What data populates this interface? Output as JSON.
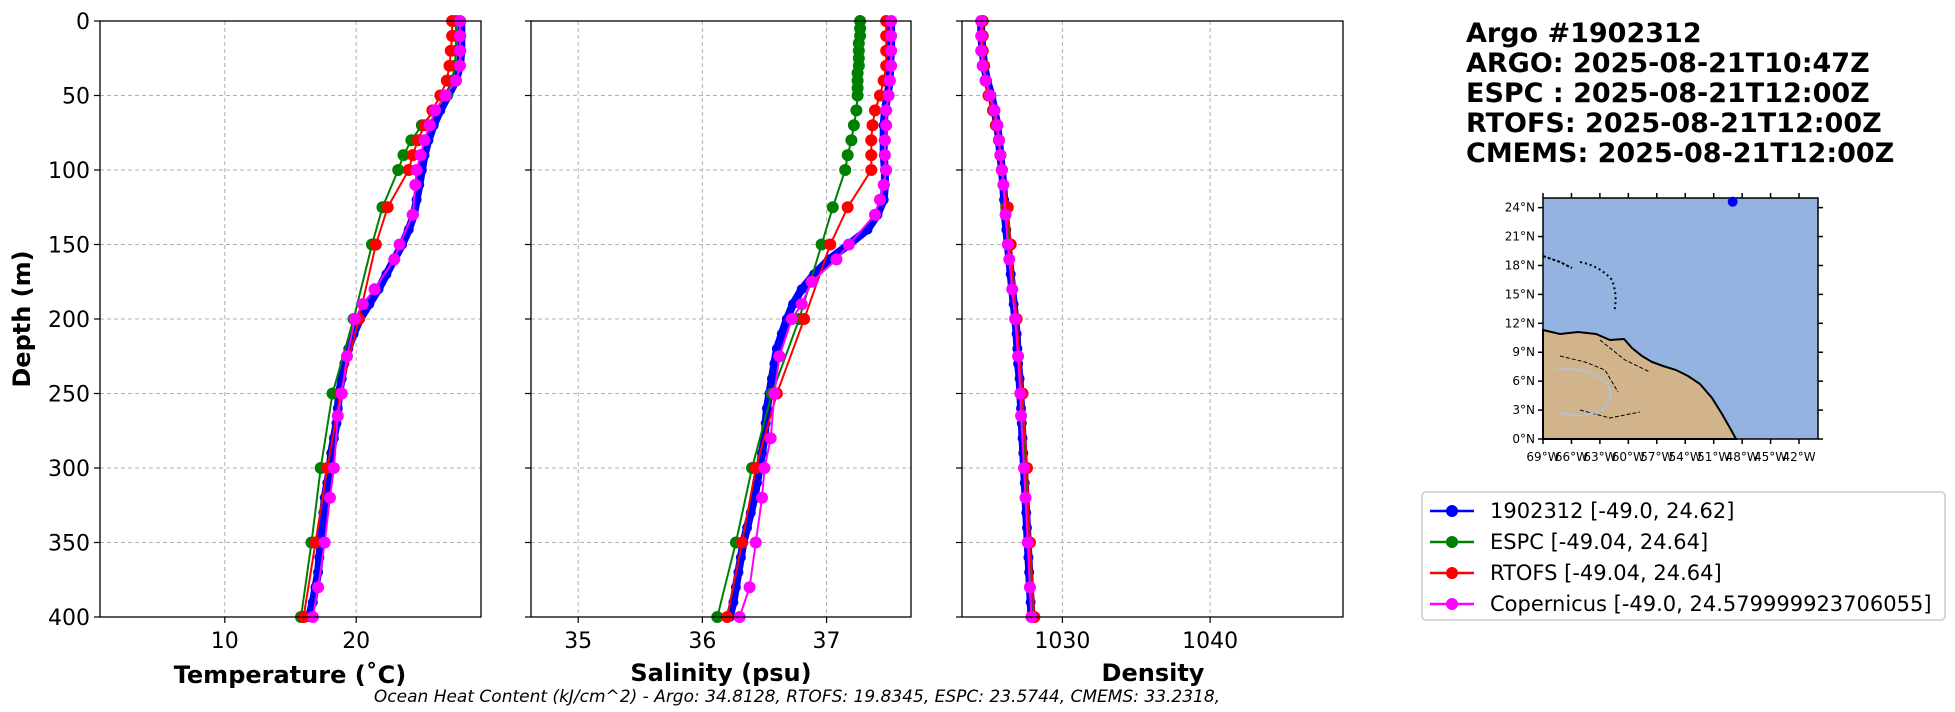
{
  "title_lines": [
    "Argo #1902312",
    "ARGO: 2025-08-21T10:47Z",
    "ESPC : 2025-08-21T12:00Z",
    "RTOFS: 2025-08-21T12:00Z",
    "CMEMS: 2025-08-21T12:00Z"
  ],
  "footer": "Ocean Heat Content (kJ/cm^2) - Argo: 34.8128,  RTOFS: 19.8345,  ESPC: 23.5744,  CMEMS: 33.2318,",
  "colors": {
    "argo": "#0000ff",
    "espc": "#008000",
    "rtofs": "#ff0000",
    "cmems": "#ff00ff",
    "ocean": "#95b3e0",
    "land": "#d2b48c"
  },
  "chart_data": [
    {
      "type": "line",
      "id": "temp",
      "title": "",
      "xlabel": "Temperature (˚C)",
      "ylabel": "Depth (m)",
      "xlim": [
        0.5,
        29.5
      ],
      "ylim": [
        400,
        0
      ],
      "xticks": [
        10,
        20
      ],
      "yticks": [
        0,
        50,
        100,
        150,
        200,
        250,
        300,
        350,
        400
      ],
      "series": [
        {
          "name": "1902312",
          "color": "#0000ff",
          "marker_size": 5,
          "depth": [
            0,
            10,
            20,
            30,
            40,
            50,
            60,
            70,
            80,
            90,
            100,
            110,
            120,
            130,
            140,
            150,
            160,
            170,
            180,
            190,
            200,
            210,
            220,
            230,
            240,
            250,
            260,
            270,
            280,
            290,
            300,
            310,
            320,
            330,
            340,
            350,
            360,
            370,
            380,
            390,
            400
          ],
          "values": [
            28.0,
            28.0,
            28.0,
            27.9,
            27.6,
            27.0,
            26.4,
            25.9,
            25.5,
            25.2,
            25.0,
            24.8,
            24.6,
            24.4,
            24.0,
            23.5,
            22.9,
            22.3,
            21.7,
            21.0,
            20.3,
            19.8,
            19.4,
            19.1,
            18.9,
            18.7,
            18.6,
            18.5,
            18.3,
            18.1,
            18.0,
            17.8,
            17.6,
            17.5,
            17.4,
            17.3,
            17.2,
            17.1,
            16.9,
            16.7,
            16.4
          ]
        },
        {
          "name": "ESPC",
          "color": "#008000",
          "marker_size": 6,
          "depth": [
            0,
            10,
            20,
            30,
            40,
            50,
            60,
            70,
            80,
            90,
            100,
            125,
            150,
            200,
            250,
            300,
            350,
            400
          ],
          "values": [
            27.6,
            27.6,
            27.6,
            27.5,
            27.3,
            26.9,
            26.0,
            25.0,
            24.2,
            23.6,
            23.2,
            22.0,
            21.2,
            19.8,
            18.2,
            17.3,
            16.6,
            15.8
          ]
        },
        {
          "name": "RTOFS",
          "color": "#ff0000",
          "marker_size": 6,
          "depth": [
            0,
            10,
            20,
            30,
            40,
            50,
            60,
            70,
            80,
            90,
            100,
            125,
            150,
            200,
            250,
            300,
            350,
            400
          ],
          "values": [
            27.3,
            27.3,
            27.2,
            27.1,
            26.9,
            26.4,
            25.8,
            25.2,
            24.7,
            24.3,
            24.0,
            22.4,
            21.5,
            20.2,
            18.8,
            17.8,
            16.9,
            16.0
          ]
        },
        {
          "name": "Copernicus",
          "color": "#ff00ff",
          "marker_size": 6,
          "depth": [
            0,
            10,
            20,
            30,
            40,
            50,
            60,
            70,
            80,
            90,
            100,
            110,
            130,
            150,
            160,
            180,
            190,
            200,
            225,
            250,
            265,
            300,
            320,
            350,
            380,
            400
          ],
          "values": [
            27.9,
            27.9,
            27.9,
            27.9,
            27.6,
            26.8,
            26.0,
            25.6,
            25.2,
            24.9,
            24.6,
            24.5,
            24.3,
            23.3,
            22.9,
            21.4,
            20.5,
            19.9,
            19.3,
            18.9,
            18.6,
            18.3,
            18.0,
            17.6,
            17.1,
            16.7
          ]
        }
      ]
    },
    {
      "type": "line",
      "id": "sal",
      "title": "",
      "xlabel": "Salinity (psu)",
      "ylabel": "",
      "xlim": [
        34.62,
        37.68
      ],
      "ylim": [
        400,
        0
      ],
      "xticks": [
        35,
        36,
        37
      ],
      "yticks": [
        0,
        50,
        100,
        150,
        200,
        250,
        300,
        350,
        400
      ],
      "series": [
        {
          "name": "1902312",
          "color": "#0000ff",
          "marker_size": 5,
          "depth": [
            0,
            10,
            20,
            30,
            40,
            50,
            60,
            70,
            80,
            90,
            100,
            110,
            120,
            130,
            140,
            150,
            160,
            170,
            180,
            190,
            200,
            210,
            220,
            230,
            240,
            250,
            260,
            270,
            280,
            290,
            300,
            310,
            320,
            330,
            340,
            350,
            360,
            370,
            380,
            390,
            400
          ],
          "values": [
            37.52,
            37.52,
            37.52,
            37.51,
            37.51,
            37.49,
            37.47,
            37.46,
            37.46,
            37.46,
            37.47,
            37.47,
            37.46,
            37.41,
            37.33,
            37.18,
            37.02,
            36.9,
            36.8,
            36.73,
            36.68,
            36.64,
            36.6,
            36.58,
            36.56,
            36.54,
            36.52,
            36.51,
            36.5,
            36.48,
            36.46,
            36.44,
            36.42,
            36.39,
            36.36,
            36.33,
            36.31,
            36.29,
            36.27,
            36.25,
            36.22
          ]
        },
        {
          "name": "ESPC",
          "color": "#008000",
          "marker_size": 6,
          "depth": [
            0,
            5,
            10,
            15,
            20,
            25,
            30,
            35,
            40,
            45,
            50,
            60,
            70,
            80,
            90,
            100,
            125,
            150,
            200,
            250,
            300,
            350,
            400
          ],
          "values": [
            37.27,
            37.27,
            37.27,
            37.26,
            37.26,
            37.26,
            37.26,
            37.25,
            37.25,
            37.25,
            37.25,
            37.24,
            37.22,
            37.2,
            37.17,
            37.15,
            37.05,
            36.96,
            36.78,
            36.56,
            36.4,
            36.27,
            36.12
          ]
        },
        {
          "name": "RTOFS",
          "color": "#ff0000",
          "marker_size": 6,
          "depth": [
            0,
            10,
            20,
            30,
            40,
            50,
            60,
            70,
            80,
            90,
            100,
            125,
            150,
            200,
            250,
            300,
            350,
            400
          ],
          "values": [
            37.48,
            37.48,
            37.48,
            37.48,
            37.46,
            37.43,
            37.39,
            37.37,
            37.36,
            37.36,
            37.36,
            37.17,
            37.03,
            36.82,
            36.6,
            36.43,
            36.32,
            36.2
          ]
        },
        {
          "name": "Copernicus",
          "color": "#ff00ff",
          "marker_size": 6,
          "depth": [
            0,
            10,
            20,
            30,
            40,
            50,
            60,
            70,
            80,
            90,
            100,
            110,
            120,
            130,
            150,
            160,
            175,
            190,
            200,
            225,
            250,
            280,
            300,
            320,
            350,
            380,
            400
          ],
          "values": [
            37.52,
            37.52,
            37.52,
            37.52,
            37.51,
            37.5,
            37.48,
            37.48,
            37.47,
            37.47,
            37.48,
            37.46,
            37.43,
            37.39,
            37.18,
            37.08,
            36.88,
            36.8,
            36.72,
            36.62,
            36.58,
            36.55,
            36.5,
            36.48,
            36.43,
            36.38,
            36.3
          ]
        }
      ]
    },
    {
      "type": "line",
      "id": "dens",
      "title": "",
      "xlabel": "Density",
      "ylabel": "",
      "xlim": [
        1023.2,
        1049.0
      ],
      "ylim": [
        400,
        0
      ],
      "xticks": [
        1030,
        1040
      ],
      "yticks": [
        0,
        50,
        100,
        150,
        200,
        250,
        300,
        350,
        400
      ],
      "series": [
        {
          "name": "1902312",
          "color": "#0000ff",
          "marker_size": 5,
          "depth": [
            0,
            10,
            20,
            30,
            40,
            50,
            60,
            70,
            80,
            90,
            100,
            110,
            120,
            130,
            140,
            150,
            160,
            170,
            180,
            190,
            200,
            210,
            220,
            230,
            240,
            250,
            260,
            270,
            280,
            290,
            300,
            310,
            320,
            330,
            340,
            350,
            360,
            370,
            380,
            390,
            400
          ],
          "values": [
            1024.5,
            1024.5,
            1024.6,
            1024.7,
            1024.9,
            1025.2,
            1025.4,
            1025.6,
            1025.7,
            1025.8,
            1025.9,
            1026.0,
            1026.05,
            1026.1,
            1026.2,
            1026.3,
            1026.4,
            1026.5,
            1026.6,
            1026.7,
            1026.8,
            1026.9,
            1026.95,
            1027.0,
            1027.1,
            1027.15,
            1027.2,
            1027.25,
            1027.3,
            1027.35,
            1027.4,
            1027.45,
            1027.5,
            1027.55,
            1027.6,
            1027.65,
            1027.7,
            1027.75,
            1027.8,
            1027.85,
            1027.9
          ]
        },
        {
          "name": "ESPC",
          "color": "#008000",
          "marker_size": 6,
          "depth": [
            0,
            10,
            20,
            30,
            40,
            50,
            60,
            70,
            80,
            90,
            100,
            125,
            150,
            200,
            250,
            300,
            350,
            400
          ],
          "values": [
            1024.6,
            1024.6,
            1024.6,
            1024.7,
            1024.8,
            1025.0,
            1025.3,
            1025.5,
            1025.7,
            1025.8,
            1025.9,
            1026.2,
            1026.4,
            1026.8,
            1027.2,
            1027.5,
            1027.7,
            1027.95
          ]
        },
        {
          "name": "RTOFS",
          "color": "#ff0000",
          "marker_size": 6,
          "depth": [
            0,
            10,
            20,
            30,
            40,
            50,
            60,
            70,
            80,
            90,
            100,
            125,
            150,
            200,
            250,
            300,
            350,
            400
          ],
          "values": [
            1024.6,
            1024.6,
            1024.6,
            1024.7,
            1024.8,
            1025.0,
            1025.3,
            1025.5,
            1025.7,
            1025.8,
            1025.9,
            1026.3,
            1026.5,
            1026.9,
            1027.3,
            1027.6,
            1027.8,
            1028.1
          ]
        },
        {
          "name": "Copernicus",
          "color": "#ff00ff",
          "marker_size": 6,
          "depth": [
            0,
            10,
            20,
            30,
            40,
            50,
            60,
            70,
            80,
            90,
            100,
            110,
            130,
            150,
            160,
            180,
            200,
            225,
            250,
            265,
            300,
            320,
            350,
            380,
            400
          ],
          "values": [
            1024.5,
            1024.5,
            1024.5,
            1024.6,
            1024.8,
            1025.1,
            1025.4,
            1025.6,
            1025.7,
            1025.8,
            1025.9,
            1026.0,
            1026.15,
            1026.3,
            1026.4,
            1026.6,
            1026.8,
            1027.0,
            1027.15,
            1027.2,
            1027.4,
            1027.5,
            1027.65,
            1027.8,
            1027.9
          ]
        }
      ]
    }
  ],
  "map": {
    "lat_ticks": [
      "24°N",
      "21°N",
      "18°N",
      "15°N",
      "12°N",
      "9°N",
      "6°N",
      "3°N",
      "0°N"
    ],
    "lon_ticks": [
      "69°W",
      "66°W",
      "63°W",
      "60°W",
      "57°W",
      "54°W",
      "51°W",
      "48°W",
      "45°W",
      "42°W"
    ],
    "lon_range": [
      -69,
      -40
    ],
    "lat_range": [
      0,
      25
    ],
    "argo_position": {
      "lon": -49.0,
      "lat": 24.62
    }
  },
  "legend": [
    {
      "label": "1902312 [-49.0, 24.62]",
      "color": "#0000ff"
    },
    {
      "label": "ESPC [-49.04, 24.64]",
      "color": "#008000"
    },
    {
      "label": "RTOFS [-49.04, 24.64]",
      "color": "#ff0000"
    },
    {
      "label": "Copernicus [-49.0, 24.579999923706055]",
      "color": "#ff00ff"
    }
  ]
}
